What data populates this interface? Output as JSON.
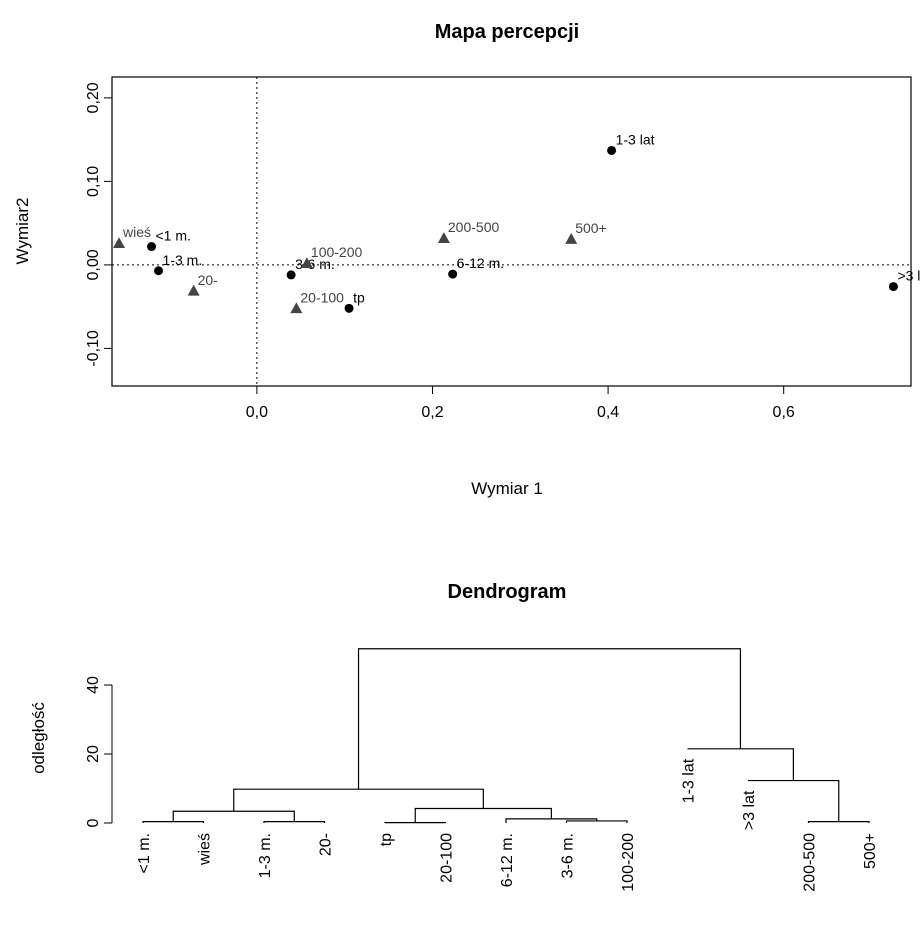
{
  "chart_data": [
    {
      "type": "scatter",
      "title": "Mapa percepcji",
      "xlabel": "Wymiar 1",
      "ylabel": "Wymiar2",
      "xlim": [
        -0.165,
        0.745
      ],
      "ylim": [
        -0.145,
        0.225
      ],
      "x_ticks": [
        {
          "v": 0.0,
          "label": "0,0"
        },
        {
          "v": 0.2,
          "label": "0,2"
        },
        {
          "v": 0.4,
          "label": "0,4"
        },
        {
          "v": 0.6,
          "label": "0,6"
        }
      ],
      "y_ticks": [
        {
          "v": -0.1,
          "label": "-0,10"
        },
        {
          "v": 0.0,
          "label": "0,00"
        },
        {
          "v": 0.1,
          "label": "0,10"
        },
        {
          "v": 0.2,
          "label": "0,20"
        }
      ],
      "reference_lines": {
        "x": 0,
        "y": 0,
        "style": "dotted"
      },
      "grid": false,
      "series": [
        {
          "marker": "circle",
          "color": "#000000",
          "points": [
            {
              "label": "<1 m.",
              "x": -0.12,
              "y": 0.022
            },
            {
              "label": "1-3 m.",
              "x": -0.112,
              "y": -0.007
            },
            {
              "label": "3-6 m.",
              "x": 0.039,
              "y": -0.012
            },
            {
              "label": "tp",
              "x": 0.105,
              "y": -0.052
            },
            {
              "label": "6-12 m.",
              "x": 0.223,
              "y": -0.011
            },
            {
              "label": "1-3 lat",
              "x": 0.404,
              "y": 0.137
            },
            {
              "label": ">3 lat",
              "x": 0.725,
              "y": -0.026
            }
          ]
        },
        {
          "marker": "triangle",
          "color": "#444444",
          "points": [
            {
              "label": "wieś",
              "x": -0.157,
              "y": 0.026
            },
            {
              "label": "20-",
              "x": -0.072,
              "y": -0.031
            },
            {
              "label": "100-200",
              "x": 0.057,
              "y": 0.002
            },
            {
              "label": "20-100",
              "x": 0.045,
              "y": -0.052
            },
            {
              "label": "200-500",
              "x": 0.213,
              "y": 0.032
            },
            {
              "label": "500+",
              "x": 0.358,
              "y": 0.031
            }
          ]
        }
      ]
    },
    {
      "type": "dendrogram",
      "title": "Dendrogram",
      "xlabel": "",
      "ylabel": "odległość",
      "ylim": [
        -1,
        53
      ],
      "y_ticks": [
        {
          "v": 0,
          "label": "0"
        },
        {
          "v": 20,
          "label": "20"
        },
        {
          "v": 40,
          "label": "40"
        }
      ],
      "leaves": [
        {
          "label": "<1 m.",
          "height": 0
        },
        {
          "label": "wieś",
          "height": 0
        },
        {
          "label": "1-3 m.",
          "height": 0
        },
        {
          "label": "20-",
          "height": 0
        },
        {
          "label": "tp",
          "height": 0
        },
        {
          "label": "20-100",
          "height": 0
        },
        {
          "label": "6-12 m.",
          "height": 0
        },
        {
          "label": "3-6 m.",
          "height": 0
        },
        {
          "label": "100-200",
          "height": 0
        },
        {
          "label": "1-3 lat",
          "height": 21.5
        },
        {
          "label": ">3 lat",
          "height": 12.3
        },
        {
          "label": "200-500",
          "height": 0
        },
        {
          "label": "500+",
          "height": 0
        }
      ],
      "merges": [
        {
          "left": "L0",
          "right": "L1",
          "height": 0.4
        },
        {
          "left": "L2",
          "right": "L3",
          "height": 0.4
        },
        {
          "left": "L7",
          "right": "L8",
          "height": 0.6
        },
        {
          "left": "L4",
          "right": "L5",
          "height": 0.1
        },
        {
          "left": "L11",
          "right": "L12",
          "height": 0.4
        },
        {
          "left": "L6",
          "right": "M2",
          "height": 1.2
        },
        {
          "left": "M0",
          "right": "M1",
          "height": 3.4
        },
        {
          "left": "M3",
          "right": "M5",
          "height": 4.2
        },
        {
          "left": "M6",
          "right": "M7",
          "height": 9.8
        },
        {
          "left": "L10",
          "right": "M4",
          "height": 12.3
        },
        {
          "left": "L9",
          "right": "M9",
          "height": 21.5
        },
        {
          "left": "M8",
          "right": "M10",
          "height": 50.5
        }
      ]
    }
  ]
}
